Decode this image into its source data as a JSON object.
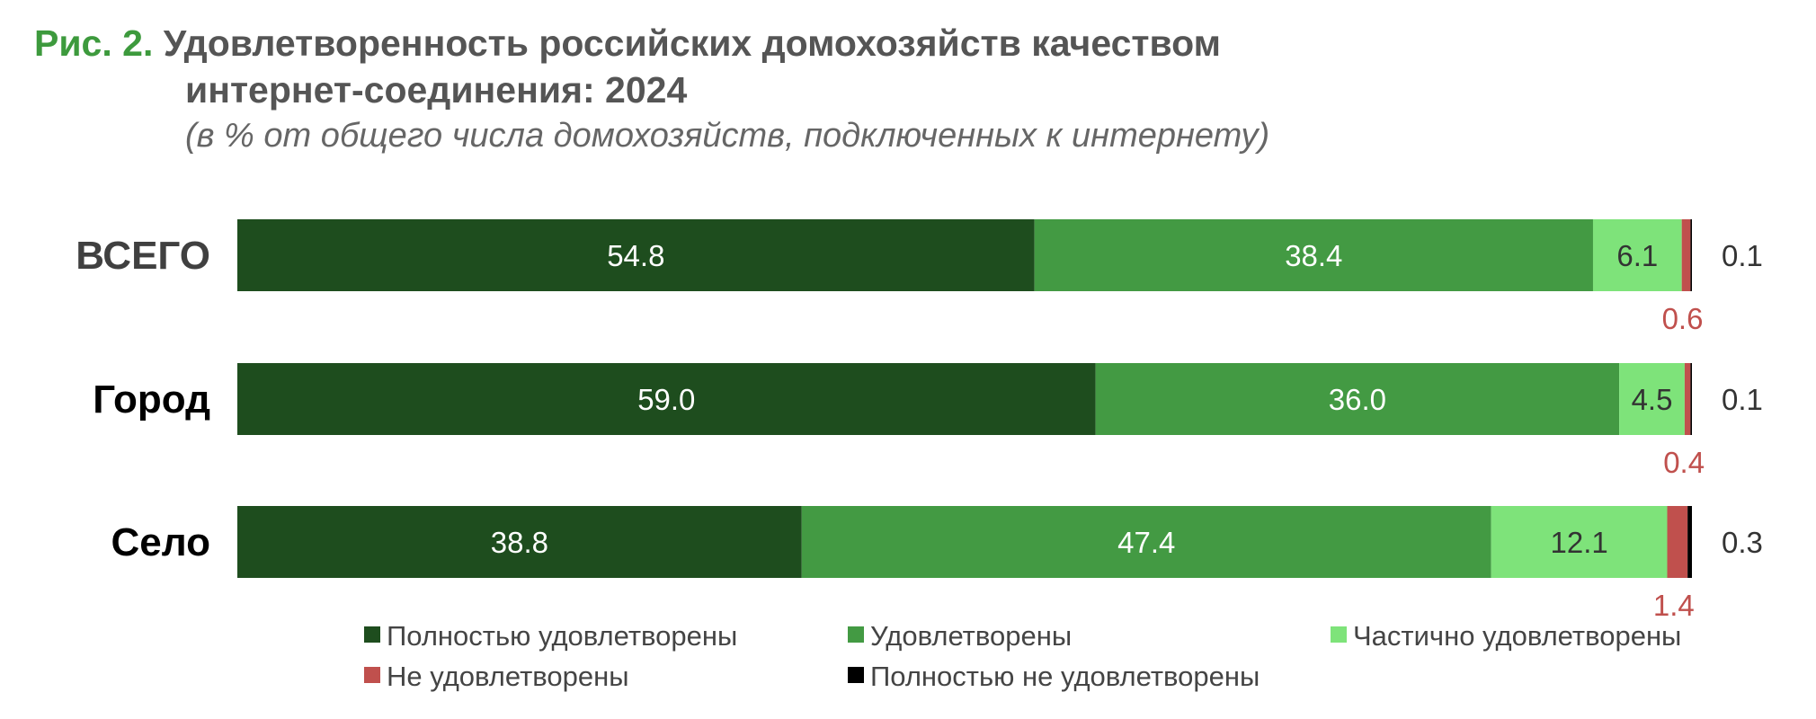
{
  "figure": {
    "label": "Рис. 2.",
    "title_line1": "Удовлетворенность российских домохозяйств качеством",
    "title_line2": "интернет-соединения: 2024",
    "subtitle": "(в % от общего числа домохозяйств, подключенных к интернету)"
  },
  "chart_data": {
    "type": "bar",
    "orientation": "horizontal",
    "stacked": true,
    "xlim": [
      0,
      100
    ],
    "grid": false,
    "legend_position": "bottom",
    "categories": [
      "ВСЕГО",
      "Город",
      "Село"
    ],
    "series": [
      {
        "name": "Полностью удовлетворены",
        "color": "#1e4d1e",
        "values": [
          54.8,
          59.0,
          38.8
        ],
        "labels": [
          "54.8",
          "59.0",
          "38.8"
        ]
      },
      {
        "name": "Удовлетворены",
        "color": "#439a43",
        "values": [
          38.4,
          36.0,
          47.4
        ],
        "labels": [
          "38.4",
          "36.0",
          "47.4"
        ]
      },
      {
        "name": "Частично удовлетворены",
        "color": "#7ee37a",
        "values": [
          6.1,
          4.5,
          12.1
        ],
        "labels": [
          "6.1",
          "4.5",
          "12.1"
        ]
      },
      {
        "name": "Не удовлетворены",
        "color": "#c0504d",
        "values": [
          0.6,
          0.4,
          1.4
        ],
        "labels": [
          "0.6",
          "0.4",
          "1.4"
        ]
      },
      {
        "name": "Полностью не удовлетворены",
        "color": "#000000",
        "values": [
          0.1,
          0.1,
          0.3
        ],
        "labels": [
          "0.1",
          "0.1",
          "0.3"
        ]
      }
    ]
  }
}
